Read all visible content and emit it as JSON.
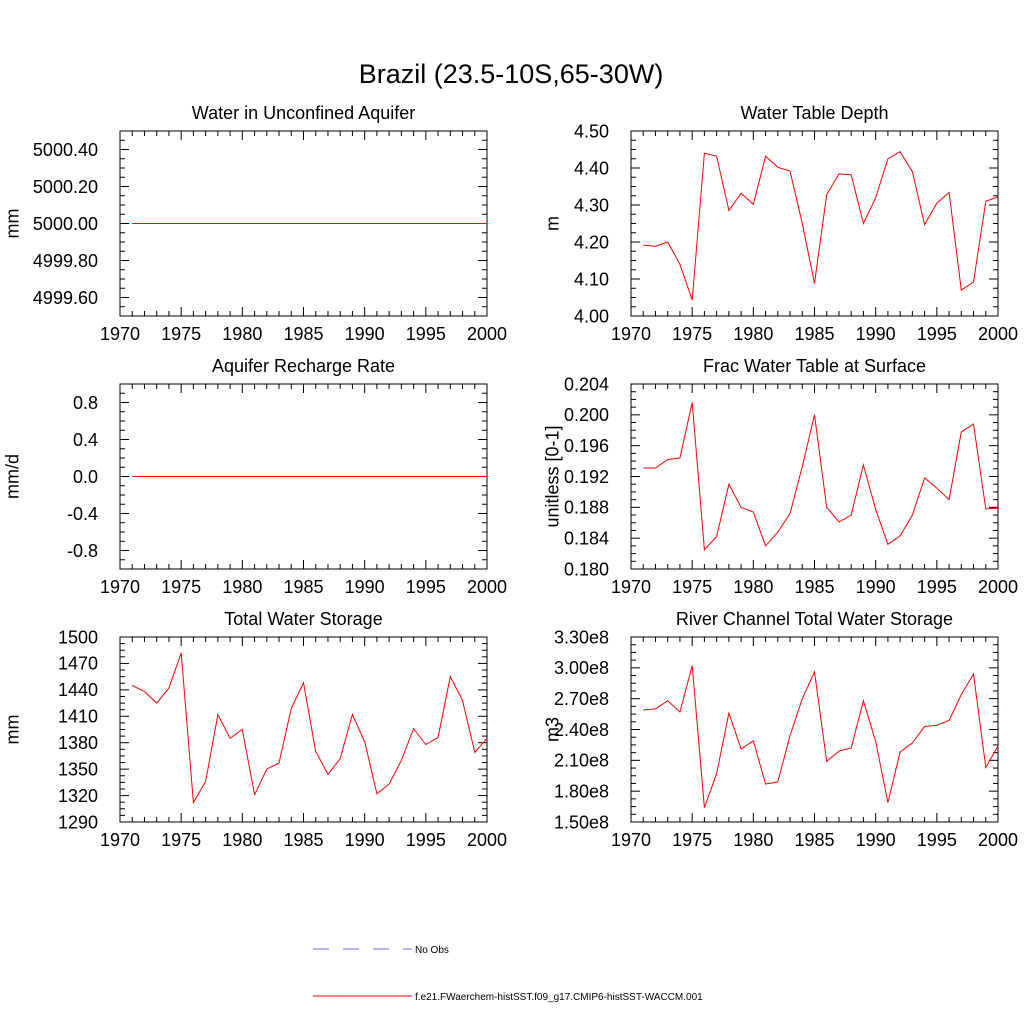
{
  "figure_title": "Brazil (23.5-10S,65-30W)",
  "legend": {
    "obs_label": "No Obs",
    "obs_color": "#6b6bd0",
    "model_label": "f.e21.FWaerchem-histSST.f09_g17.CMIP6-histSST-WACCM.001",
    "model_color": "#ff0000"
  },
  "chart_data": [
    {
      "type": "line",
      "title": "Water in Unconfined Aquifer",
      "ylabel": "mm",
      "xlim": [
        1970,
        2000
      ],
      "ylim": [
        4999.5,
        5000.5
      ],
      "x_ticks": [
        1970,
        1975,
        1980,
        1985,
        1990,
        1995,
        2000
      ],
      "y_ticks": [
        "4999.60",
        "4999.80",
        "5000.00",
        "5000.20",
        "5000.40"
      ],
      "series": [
        {
          "x": [
            1971,
            1972,
            1973,
            1974,
            1975,
            1976,
            1977,
            1978,
            1979,
            1980,
            1981,
            1982,
            1983,
            1984,
            1985,
            1986,
            1987,
            1988,
            1989,
            1990,
            1991,
            1992,
            1993,
            1994,
            1995,
            1996,
            1997,
            1998,
            1999,
            2000
          ],
          "values": [
            5000,
            5000,
            5000,
            5000,
            5000,
            5000,
            5000,
            5000,
            5000,
            5000,
            5000,
            5000,
            5000,
            5000,
            5000,
            5000,
            5000,
            5000,
            5000,
            5000,
            5000,
            5000,
            5000,
            5000,
            5000,
            5000,
            5000,
            5000,
            5000,
            5000
          ]
        }
      ]
    },
    {
      "type": "line",
      "title": "Water Table Depth",
      "ylabel": "m",
      "xlim": [
        1970,
        2000
      ],
      "ylim": [
        4.0,
        4.5
      ],
      "x_ticks": [
        1970,
        1975,
        1980,
        1985,
        1990,
        1995,
        2000
      ],
      "y_ticks": [
        "4.00",
        "4.10",
        "4.20",
        "4.30",
        "4.40",
        "4.50"
      ],
      "series": [
        {
          "x": [
            1971,
            1972,
            1973,
            1974,
            1975,
            1976,
            1977,
            1978,
            1979,
            1980,
            1981,
            1982,
            1983,
            1984,
            1985,
            1986,
            1987,
            1988,
            1989,
            1990,
            1991,
            1992,
            1993,
            1994,
            1995,
            1996,
            1997,
            1998,
            1999,
            2000
          ],
          "values": [
            4.192,
            4.188,
            4.2,
            4.14,
            4.043,
            4.44,
            4.432,
            4.285,
            4.332,
            4.302,
            4.432,
            4.402,
            4.392,
            4.25,
            4.088,
            4.328,
            4.384,
            4.382,
            4.25,
            4.32,
            4.425,
            4.444,
            4.39,
            4.247,
            4.305,
            4.334,
            4.07,
            4.092,
            4.31,
            4.322
          ]
        }
      ]
    },
    {
      "type": "line",
      "title": "Aquifer Recharge Rate",
      "ylabel": "mm/d",
      "xlim": [
        1970,
        2000
      ],
      "ylim": [
        -1.0,
        1.0
      ],
      "x_ticks": [
        1970,
        1975,
        1980,
        1985,
        1990,
        1995,
        2000
      ],
      "y_ticks": [
        "-0.8",
        "-0.4",
        "0.0",
        "0.4",
        "0.8"
      ],
      "series": [
        {
          "x": [
            1971,
            1972,
            1973,
            1974,
            1975,
            1976,
            1977,
            1978,
            1979,
            1980,
            1981,
            1982,
            1983,
            1984,
            1985,
            1986,
            1987,
            1988,
            1989,
            1990,
            1991,
            1992,
            1993,
            1994,
            1995,
            1996,
            1997,
            1998,
            1999,
            2000
          ],
          "values": [
            0,
            0,
            0,
            0,
            0,
            0,
            0,
            0,
            0,
            0,
            0,
            0,
            0,
            0,
            0,
            0,
            0,
            0,
            0,
            0,
            0,
            0,
            0,
            0,
            0,
            0,
            0,
            0,
            0,
            0
          ]
        }
      ]
    },
    {
      "type": "line",
      "title": "Frac Water Table at Surface",
      "ylabel": "unitless [0-1]",
      "xlim": [
        1970,
        2000
      ],
      "ylim": [
        0.18,
        0.204
      ],
      "x_ticks": [
        1970,
        1975,
        1980,
        1985,
        1990,
        1995,
        2000
      ],
      "y_ticks": [
        "0.180",
        "0.184",
        "0.188",
        "0.192",
        "0.196",
        "0.200",
        "0.204"
      ],
      "series": [
        {
          "x": [
            1971,
            1972,
            1973,
            1974,
            1975,
            1976,
            1977,
            1978,
            1979,
            1980,
            1981,
            1982,
            1983,
            1984,
            1985,
            1986,
            1987,
            1988,
            1989,
            1990,
            1991,
            1992,
            1993,
            1994,
            1995,
            1996,
            1997,
            1998,
            1999,
            2000
          ],
          "values": [
            0.1931,
            0.1931,
            0.1942,
            0.1944,
            0.2016,
            0.1825,
            0.1842,
            0.191,
            0.188,
            0.1874,
            0.183,
            0.1848,
            0.1872,
            0.1933,
            0.2,
            0.188,
            0.1861,
            0.187,
            0.1935,
            0.1877,
            0.1832,
            0.1843,
            0.187,
            0.1918,
            0.1905,
            0.189,
            0.1978,
            0.1988,
            0.1878,
            0.1879
          ]
        }
      ]
    },
    {
      "type": "line",
      "title": "Total Water Storage",
      "ylabel": "mm",
      "xlim": [
        1970,
        2000
      ],
      "ylim": [
        1290,
        1500
      ],
      "x_ticks": [
        1970,
        1975,
        1980,
        1985,
        1990,
        1995,
        2000
      ],
      "y_ticks": [
        "1290",
        "1320",
        "1350",
        "1380",
        "1410",
        "1440",
        "1470",
        "1500"
      ],
      "series": [
        {
          "x": [
            1971,
            1972,
            1973,
            1974,
            1975,
            1976,
            1977,
            1978,
            1979,
            1980,
            1981,
            1982,
            1983,
            1984,
            1985,
            1986,
            1987,
            1988,
            1989,
            1990,
            1991,
            1992,
            1993,
            1994,
            1995,
            1996,
            1997,
            1998,
            1999,
            2000
          ],
          "values": [
            1445,
            1438,
            1425,
            1442,
            1482,
            1312,
            1336,
            1412,
            1385,
            1395,
            1321,
            1350,
            1357,
            1419,
            1448,
            1370,
            1344,
            1362,
            1412,
            1381,
            1322,
            1333,
            1360,
            1396,
            1378,
            1386,
            1455,
            1428,
            1369,
            1385
          ]
        }
      ]
    },
    {
      "type": "line",
      "title": "River Channel Total Water Storage",
      "ylabel": "m3",
      "xlim": [
        1970,
        2000
      ],
      "ylim": [
        150000000,
        330000000
      ],
      "x_ticks": [
        1970,
        1975,
        1980,
        1985,
        1990,
        1995,
        2000
      ],
      "y_ticks": [
        "1.50e8",
        "1.80e8",
        "2.10e8",
        "2.40e8",
        "2.70e8",
        "3.00e8",
        "3.30e8"
      ],
      "series": [
        {
          "x": [
            1971,
            1972,
            1973,
            1974,
            1975,
            1976,
            1977,
            1978,
            1979,
            1980,
            1981,
            1982,
            1983,
            1984,
            1985,
            1986,
            1987,
            1988,
            1989,
            1990,
            1991,
            1992,
            1993,
            1994,
            1995,
            1996,
            1997,
            1998,
            1999,
            2000
          ],
          "values": [
            259000000,
            260000000,
            268000000,
            257000000,
            302000000,
            164000000,
            197000000,
            256000000,
            221000000,
            229000000,
            187000000,
            189000000,
            234000000,
            270000000,
            296000000,
            209000000,
            219000000,
            222000000,
            268000000,
            228000000,
            169000000,
            218000000,
            227000000,
            243000000,
            244000000,
            249000000,
            274000000,
            294000000,
            203000000,
            224000000
          ]
        }
      ]
    }
  ]
}
